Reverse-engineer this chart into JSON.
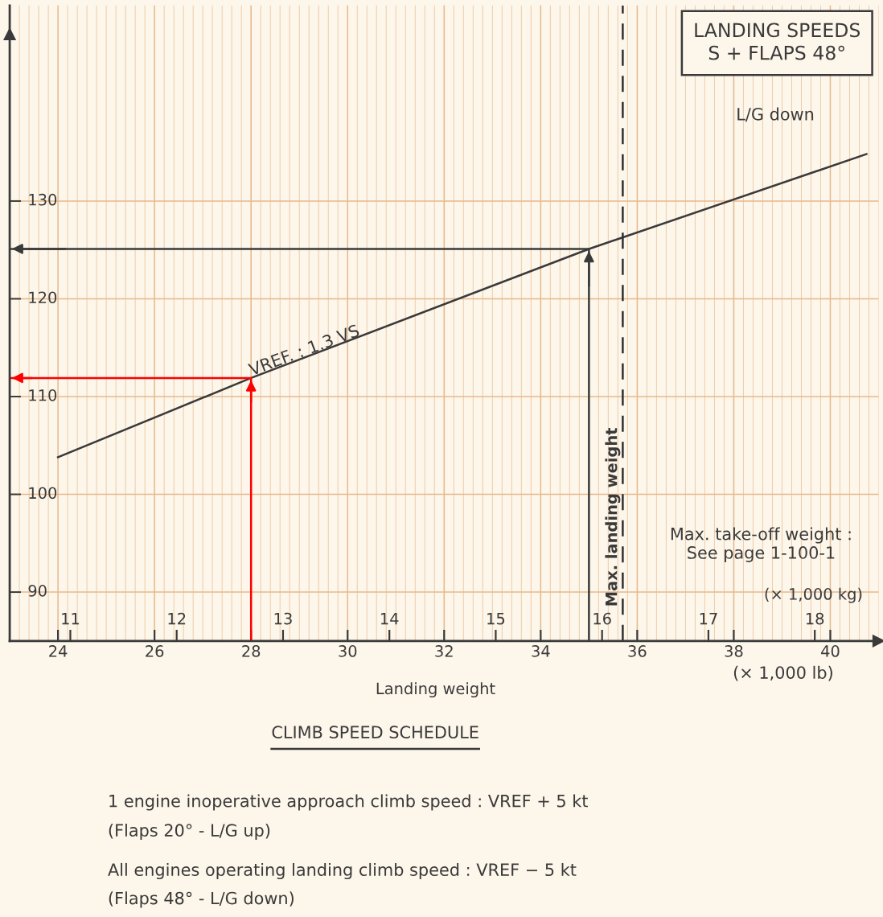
{
  "chart_data": {
    "type": "line",
    "title": "LANDING SPEEDS\nS + FLAPS 48°",
    "xlabel": "Landing weight",
    "x2label": "(× 1,000 kg)",
    "xlim": [
      23,
      41
    ],
    "xticks": [
      24,
      26,
      28,
      30,
      32,
      34,
      36,
      38,
      40
    ],
    "x2lim": [
      10.43,
      18.6
    ],
    "x2ticks": [
      11,
      12,
      13,
      14,
      15,
      16,
      17,
      18
    ],
    "ylim": [
      85,
      150
    ],
    "yticks": [
      90,
      100,
      110,
      120,
      130
    ],
    "grid": true,
    "marker": "none",
    "line_style": "solid",
    "series": [
      {
        "color": "#3a3a3a",
        "x": [
          24,
          28,
          35,
          40.75
        ],
        "values": [
          103.8,
          111.9,
          125.1,
          134.8
        ]
      },
      {
        "color": "#3a3a3a",
        "x": [
          35,
          35,
          23
        ],
        "values": [
          85,
          125.1,
          125.1
        ]
      },
      {
        "color": "#ff0000",
        "x": [
          28,
          28,
          23
        ],
        "values": [
          85,
          111.9,
          111.9
        ]
      }
    ],
    "ref_lines": [
      {
        "axis": "x",
        "value": 35.7,
        "label": "Max. landing weight",
        "line_style": "dashed",
        "color": "#303030"
      }
    ],
    "annotations": [
      "VREF. : 1.3 VS",
      "L/G down",
      "Max. take-off weight :\nSee page 1-100-1",
      "(× 1,000 lb)",
      "CLIMB SPEED SCHEDULE",
      "1 engine inoperative approach climb speed : VREF + 5 kt",
      "(Flaps 20° - L/G up)",
      "All engines operating landing climb speed : VREF − 5 kt",
      "(Flaps 48° - L/G down)"
    ]
  }
}
